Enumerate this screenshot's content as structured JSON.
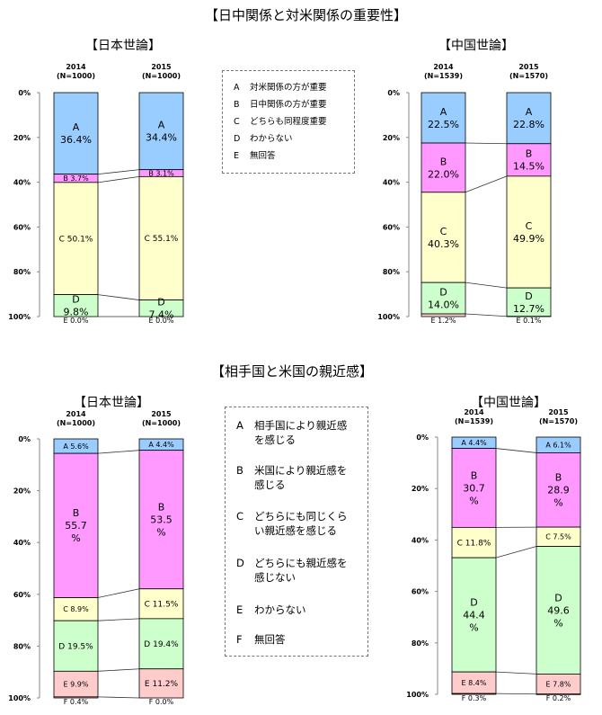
{
  "section1": {
    "title": "【日中関係と対米関係の重要性】"
  },
  "section2": {
    "title": "【相手国と米国の親近感】"
  },
  "legend1": [
    {
      "key": "A",
      "text": "対米関係の方が重要"
    },
    {
      "key": "B",
      "text": "日中関係の方が重要"
    },
    {
      "key": "C",
      "text": "どちらも同程度重要"
    },
    {
      "key": "D",
      "text": "わからない"
    },
    {
      "key": "E",
      "text": "無回答"
    }
  ],
  "legend2": [
    {
      "key": "A",
      "text": "相手国により親近感\nを感じる"
    },
    {
      "key": "B",
      "text": "米国により親近感を\n感じる"
    },
    {
      "key": "C",
      "text": "どちらにも同じくら\nい親近感を感じる"
    },
    {
      "key": "D",
      "text": "どちらにも親近感を\n感じない"
    },
    {
      "key": "E",
      "text": "わからない"
    },
    {
      "key": "F",
      "text": "無回答"
    }
  ],
  "colors": {
    "A": "#99ccff",
    "B": "#ff99ff",
    "C": "#ffffcc",
    "D": "#ccffcc",
    "E": "#ffcccc",
    "F": "#ffcccc",
    "border": "#000000",
    "axis": "#888888"
  },
  "chart_data": [
    {
      "type": "bar",
      "stacked": true,
      "title": "【日本世論】",
      "ylim": [
        0,
        100
      ],
      "yticks": [
        "0%",
        "20%",
        "40%",
        "60%",
        "80%",
        "100%"
      ],
      "categories": [
        "2014",
        "2015"
      ],
      "category_notes": [
        "(N=1000)",
        "(N=1000)"
      ],
      "segment_keys": [
        "A",
        "B",
        "C",
        "D",
        "E"
      ],
      "values": [
        [
          36.4,
          3.7,
          50.1,
          9.8,
          0.0
        ],
        [
          34.4,
          3.1,
          55.1,
          7.4,
          0.0
        ]
      ],
      "labels": [
        [
          "A\n36.4%",
          "B 3.7%",
          "C 50.1%",
          "D\n9.8%",
          "E 0.0%"
        ],
        [
          "A\n34.4%",
          "B 3.1%",
          "C 55.1%",
          "D\n7.4%",
          "E 0.0%"
        ]
      ]
    },
    {
      "type": "bar",
      "stacked": true,
      "title": "【中国世論】",
      "ylim": [
        0,
        100
      ],
      "yticks": [
        "0%",
        "20%",
        "40%",
        "60%",
        "80%",
        "100%"
      ],
      "categories": [
        "2014",
        "2015"
      ],
      "category_notes": [
        "(N=1539)",
        "(N=1570)"
      ],
      "segment_keys": [
        "A",
        "B",
        "C",
        "D",
        "E"
      ],
      "values": [
        [
          22.5,
          22.0,
          40.3,
          14.0,
          1.2
        ],
        [
          22.8,
          14.5,
          49.9,
          12.7,
          0.1
        ]
      ],
      "labels": [
        [
          "A\n22.5%",
          "B\n22.0%",
          "C\n40.3%",
          "D\n14.0%",
          "E 1.2%"
        ],
        [
          "A\n22.8%",
          "B\n14.5%",
          "C\n49.9%",
          "D\n12.7%",
          "E 0.1%"
        ]
      ]
    },
    {
      "type": "bar",
      "stacked": true,
      "title": "【日本世論】",
      "ylim": [
        0,
        100
      ],
      "yticks": [
        "0%",
        "20%",
        "40%",
        "60%",
        "80%",
        "100%"
      ],
      "categories": [
        "2014",
        "2015"
      ],
      "category_notes": [
        "(N=1000)",
        "(N=1000)"
      ],
      "segment_keys": [
        "A",
        "B",
        "C",
        "D",
        "E",
        "F"
      ],
      "values": [
        [
          5.6,
          55.7,
          8.9,
          19.5,
          9.9,
          0.4
        ],
        [
          4.4,
          53.5,
          11.5,
          19.4,
          11.2,
          0.0
        ]
      ],
      "labels": [
        [
          "A 5.6%",
          "B\n55.7\n%",
          "C 8.9%",
          "D 19.5%",
          "E 9.9%",
          "F 0.4%"
        ],
        [
          "A 4.4%",
          "B\n53.5\n%",
          "C 11.5%",
          "D 19.4%",
          "E 11.2%",
          "F 0.0%"
        ]
      ]
    },
    {
      "type": "bar",
      "stacked": true,
      "title": "【中国世論】",
      "ylim": [
        0,
        100
      ],
      "yticks": [
        "0%",
        "20%",
        "40%",
        "60%",
        "80%",
        "100%"
      ],
      "categories": [
        "2014",
        "2015"
      ],
      "category_notes": [
        "(N=1539)",
        "(N=1570)"
      ],
      "segment_keys": [
        "A",
        "B",
        "C",
        "D",
        "E",
        "F"
      ],
      "values": [
        [
          4.4,
          30.7,
          11.8,
          44.4,
          8.4,
          0.3
        ],
        [
          6.1,
          28.9,
          7.5,
          49.6,
          7.8,
          0.2
        ]
      ],
      "labels": [
        [
          "A 4.4%",
          "B\n30.7\n%",
          "C 11.8%",
          "D\n44.4\n%",
          "E 8.4%",
          "F 0.3%"
        ],
        [
          "A 6.1%",
          "B\n28.9\n%",
          "C 7.5%",
          "D\n49.6\n%",
          "E 7.8%",
          "F 0.2%"
        ]
      ]
    }
  ]
}
